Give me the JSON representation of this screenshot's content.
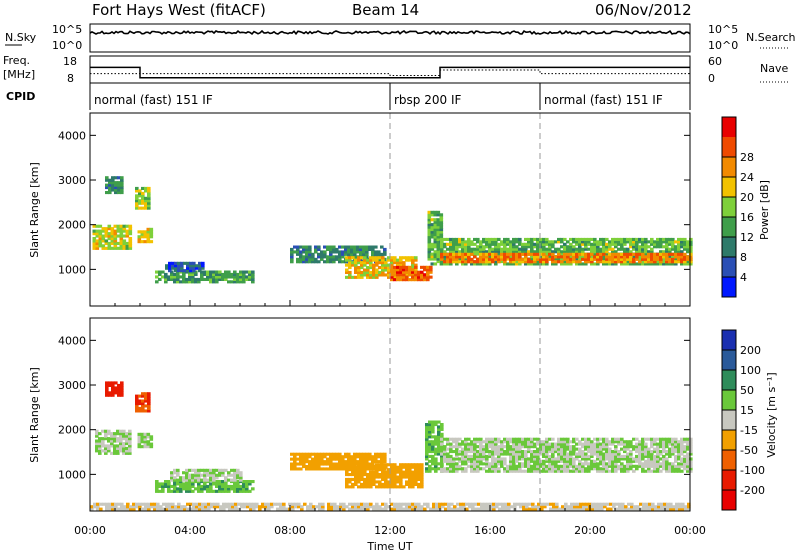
{
  "header": {
    "station": "Fort Hays West (fitACF)",
    "beam": "Beam 14",
    "date": "06/Nov/2012"
  },
  "status_panels": {
    "nsky_label": "N.Sky",
    "nsky_ticks": [
      "10^5",
      "10^0"
    ],
    "nsearch_label": "N.Search",
    "nsearch_ticks": [
      "10^5",
      "10^0"
    ],
    "freq_label": "Freq.",
    "freq_unit": "[MHz]",
    "freq_ticks": [
      "18",
      "8"
    ],
    "nave_label": "Nave",
    "nave_ticks": [
      "60",
      "0"
    ],
    "cpid_label": "CPID",
    "cpid_segments": [
      {
        "label": "normal (fast) 151 IF",
        "start_hour": 0,
        "end_hour": 12
      },
      {
        "label": "rbsp 200 IF",
        "start_hour": 12,
        "end_hour": 18
      },
      {
        "label": "normal (fast) 151 IF",
        "start_hour": 18,
        "end_hour": 24
      }
    ],
    "freq_series": [
      {
        "start_hour": 0,
        "end_hour": 2,
        "value": 14.2
      },
      {
        "start_hour": 2,
        "end_hour": 12,
        "value": 9.5
      },
      {
        "start_hour": 12,
        "end_hour": 14,
        "value": 9.5
      },
      {
        "start_hour": 14,
        "end_hour": 18,
        "value": 14.2
      },
      {
        "start_hour": 18,
        "end_hour": 24,
        "value": 14.2
      }
    ],
    "nave_series": [
      {
        "start_hour": 0,
        "end_hour": 2,
        "value": 20
      },
      {
        "start_hour": 2,
        "end_hour": 12,
        "value": 20
      },
      {
        "start_hour": 12,
        "end_hour": 14,
        "value": 15
      },
      {
        "start_hour": 14,
        "end_hour": 18,
        "value": 30
      },
      {
        "start_hour": 18,
        "end_hour": 24,
        "value": 20
      }
    ]
  },
  "chart_data": [
    {
      "type": "heatmap",
      "name": "power-panel",
      "ylabel": "Slant Range [km]",
      "ylim": [
        180,
        4500
      ],
      "y_ticks": [
        1000,
        2000,
        3000,
        4000
      ],
      "xlim": [
        0,
        24
      ],
      "colorbar": {
        "label": "Power [dB]",
        "range": [
          0,
          32
        ],
        "ticks": [
          "4",
          "8",
          "12",
          "16",
          "20",
          "24",
          "28"
        ],
        "colors": [
          "#0018ff",
          "#2a4fb5",
          "#2e7a6a",
          "#3f9e4a",
          "#7ed03a",
          "#f2c200",
          "#f28a00",
          "#ef4a00",
          "#e80000"
        ]
      },
      "regions": [
        {
          "t0": 0.1,
          "t1": 1.6,
          "r0": 1450,
          "r1": 2000,
          "v": 18
        },
        {
          "t0": 0.6,
          "t1": 1.3,
          "r0": 2700,
          "r1": 3050,
          "v": 10
        },
        {
          "t0": 1.8,
          "t1": 2.4,
          "r0": 2350,
          "r1": 2800,
          "v": 16
        },
        {
          "t0": 1.9,
          "t1": 2.4,
          "r0": 1600,
          "r1": 1900,
          "v": 20
        },
        {
          "t0": 2.6,
          "t1": 6.5,
          "r0": 700,
          "r1": 950,
          "v": 12
        },
        {
          "t0": 3.0,
          "t1": 4.5,
          "r0": 950,
          "r1": 1150,
          "v": 6
        },
        {
          "t0": 8.0,
          "t1": 11.8,
          "r0": 1150,
          "r1": 1500,
          "v": 10
        },
        {
          "t0": 10.2,
          "t1": 13.0,
          "r0": 800,
          "r1": 1250,
          "v": 20
        },
        {
          "t0": 12.0,
          "t1": 13.6,
          "r0": 750,
          "r1": 1050,
          "v": 26
        },
        {
          "t0": 13.5,
          "t1": 14.0,
          "r0": 1100,
          "r1": 2300,
          "v": 14
        },
        {
          "t0": 14.0,
          "t1": 24.0,
          "r0": 1100,
          "r1": 1700,
          "v": 14
        },
        {
          "t0": 14.0,
          "t1": 24.0,
          "r0": 1150,
          "r1": 1350,
          "v": 24
        }
      ]
    },
    {
      "type": "heatmap",
      "name": "velocity-panel",
      "ylabel": "Slant Range [km]",
      "ylim": [
        180,
        4500
      ],
      "y_ticks": [
        1000,
        2000,
        3000,
        4000
      ],
      "xlim": [
        0,
        24
      ],
      "xlabel": "Time UT",
      "x_tick_labels": [
        "00:00",
        "04:00",
        "08:00",
        "12:00",
        "16:00",
        "20:00",
        "00:00"
      ],
      "colorbar": {
        "label": "Velocity [m s⁻¹]",
        "ticks": [
          "200",
          "100",
          "50",
          "15",
          "-15",
          "-50",
          "-100",
          "-200"
        ],
        "colors": [
          "#1a2fb0",
          "#2a5a9a",
          "#2e8c5a",
          "#6ac83a",
          "#c8c8c0",
          "#f2a000",
          "#ef6000",
          "#e81a00",
          "#e80000"
        ]
      },
      "regions": [
        {
          "t0": 0.2,
          "t1": 1.6,
          "r0": 1450,
          "r1": 2000,
          "v": 0
        },
        {
          "t0": 0.6,
          "t1": 1.3,
          "r0": 2750,
          "r1": 3050,
          "v": -200
        },
        {
          "t0": 1.8,
          "t1": 2.4,
          "r0": 2400,
          "r1": 2800,
          "v": -150
        },
        {
          "t0": 1.9,
          "t1": 2.4,
          "r0": 1600,
          "r1": 1900,
          "v": 0
        },
        {
          "t0": 2.6,
          "t1": 6.5,
          "r0": 600,
          "r1": 850,
          "v": 30
        },
        {
          "t0": 3.2,
          "t1": 6.0,
          "r0": 850,
          "r1": 1100,
          "v": 0
        },
        {
          "t0": 8.0,
          "t1": 11.8,
          "r0": 1100,
          "r1": 1450,
          "v": -60
        },
        {
          "t0": 10.2,
          "t1": 13.2,
          "r0": 700,
          "r1": 1200,
          "v": -40
        },
        {
          "t0": 13.4,
          "t1": 14.0,
          "r0": 1050,
          "r1": 2200,
          "v": 30
        },
        {
          "t0": 14.0,
          "t1": 24.0,
          "r0": 1050,
          "r1": 1800,
          "v": 0
        },
        {
          "t0": 0.0,
          "t1": 24.0,
          "r0": 200,
          "r1": 320,
          "v": -30
        }
      ]
    }
  ]
}
